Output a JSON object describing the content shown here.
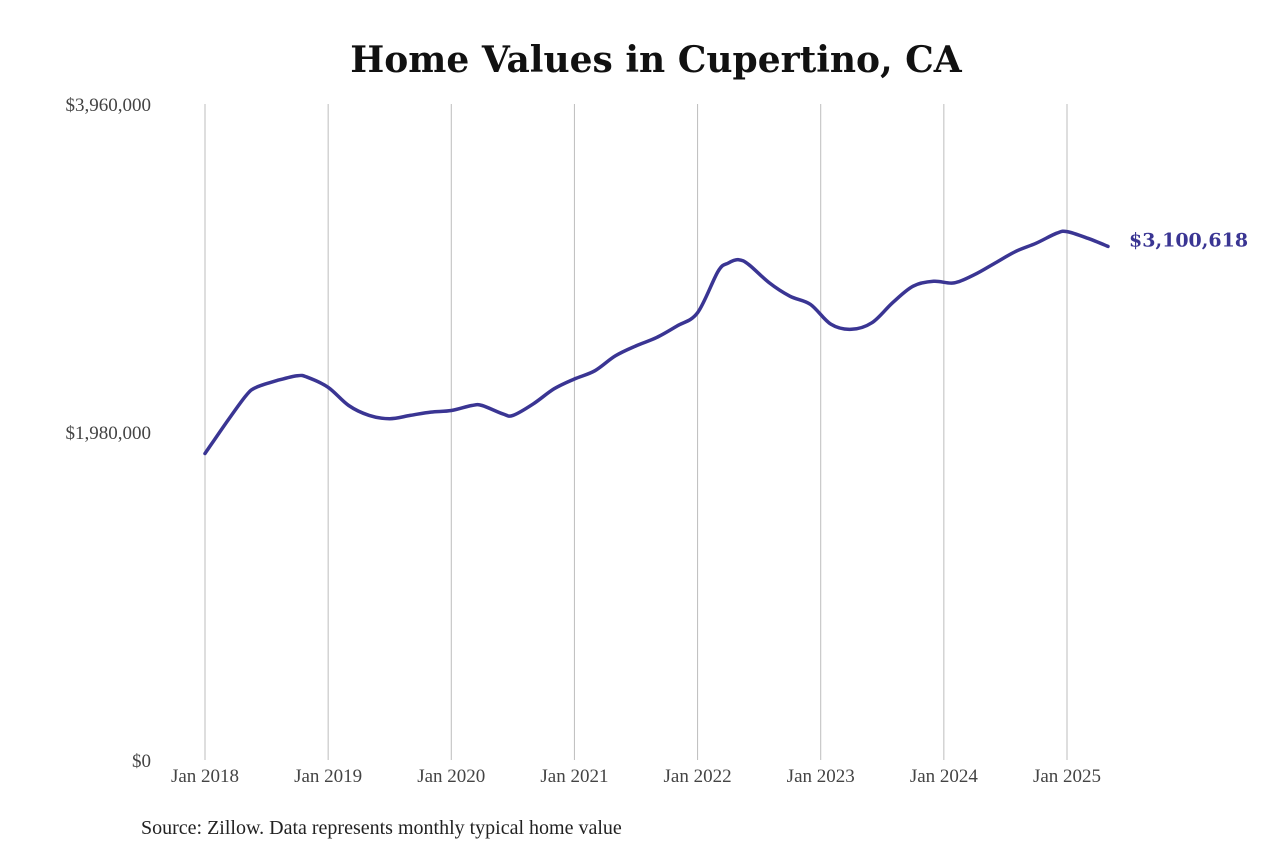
{
  "chart_data": {
    "type": "line",
    "title": "Home Values in Cupertino, CA",
    "source": "Source: Zillow. Data represents monthly typical home value",
    "y_ticks": [
      {
        "value": 3960000,
        "label": "$3,960,000"
      },
      {
        "value": 1980000,
        "label": "$1,980,000"
      },
      {
        "value": 0,
        "label": "$0"
      }
    ],
    "ylim": [
      0,
      3960000
    ],
    "x_ticks": [
      "2018-01",
      "2019-01",
      "2020-01",
      "2021-01",
      "2022-01",
      "2023-01",
      "2024-01",
      "2025-01"
    ],
    "x_tick_labels": [
      "Jan 2018",
      "Jan 2019",
      "Jan 2020",
      "Jan 2021",
      "Jan 2022",
      "Jan 2023",
      "Jan 2024",
      "Jan 2025"
    ],
    "grid": "vertical",
    "line_color": "#3a3593",
    "end_label": "$3,100,618",
    "series": [
      {
        "x": [
          "2018-01",
          "2018-03",
          "2018-05",
          "2018-06",
          "2018-08",
          "2018-10",
          "2018-11",
          "2019-01",
          "2019-03",
          "2019-05",
          "2019-07",
          "2019-09",
          "2019-11",
          "2020-01",
          "2020-03",
          "2020-04",
          "2020-06",
          "2020-07",
          "2020-09",
          "2020-11",
          "2021-01",
          "2021-03",
          "2021-05",
          "2021-07",
          "2021-09",
          "2021-11",
          "2022-01",
          "2022-03",
          "2022-04",
          "2022-05",
          "2022-06",
          "2022-08",
          "2022-10",
          "2022-12",
          "2023-02",
          "2023-04",
          "2023-06",
          "2023-08",
          "2023-10",
          "2023-12",
          "2024-02",
          "2024-04",
          "2024-06",
          "2024-08",
          "2024-10",
          "2024-12",
          "2025-01",
          "2025-03",
          "2025-05"
        ],
        "values": [
          1850000,
          2030000,
          2200000,
          2250000,
          2290000,
          2320000,
          2310000,
          2250000,
          2140000,
          2080000,
          2060000,
          2080000,
          2100000,
          2110000,
          2140000,
          2140000,
          2090000,
          2080000,
          2150000,
          2240000,
          2300000,
          2350000,
          2440000,
          2500000,
          2550000,
          2620000,
          2700000,
          2950000,
          3000000,
          3020000,
          2990000,
          2880000,
          2800000,
          2750000,
          2630000,
          2600000,
          2640000,
          2760000,
          2860000,
          2890000,
          2880000,
          2930000,
          3000000,
          3070000,
          3120000,
          3180000,
          3190000,
          3150000,
          3100618
        ]
      }
    ]
  }
}
